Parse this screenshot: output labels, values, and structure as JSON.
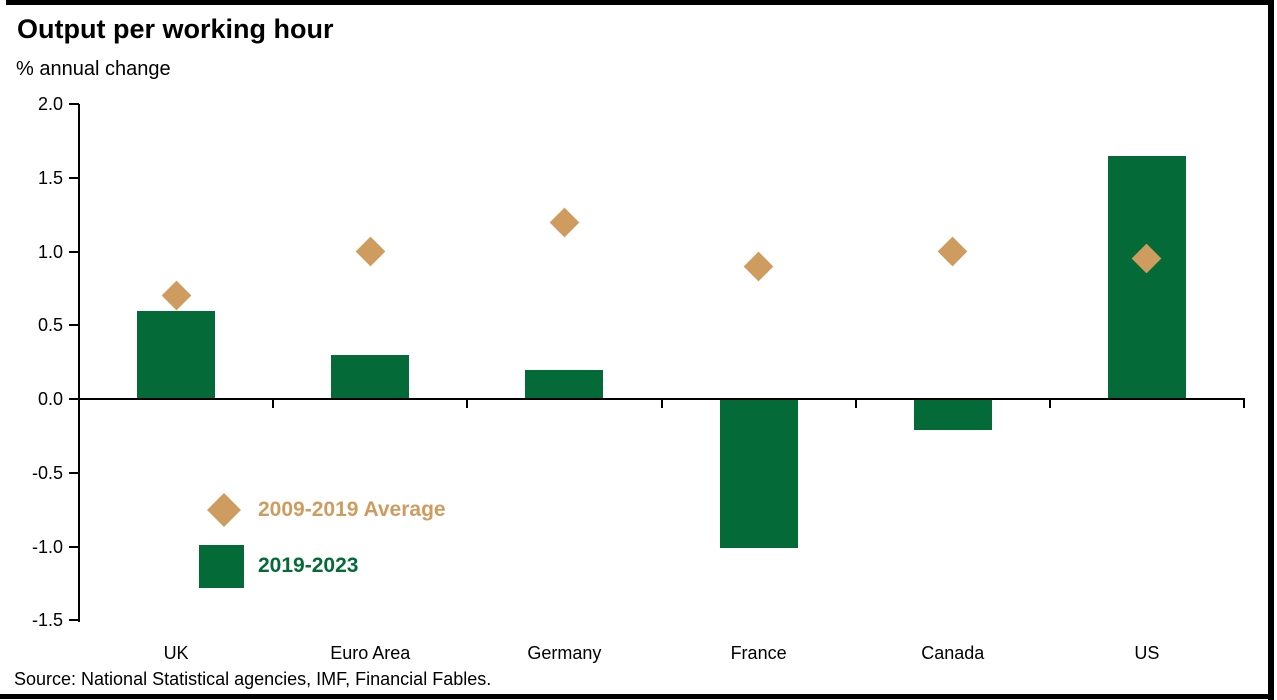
{
  "header": {
    "title": "Output per working hour",
    "subtitle": "% annual change"
  },
  "footer": {
    "source": "Source: National Statistical agencies, IMF, Financial Fables."
  },
  "colors": {
    "bar_green": "#046A38",
    "diamond_tan": "#CF9C5F",
    "axis_black": "#000000"
  },
  "legend": {
    "items": [
      {
        "label": "2009-2019 Average",
        "marker": "diamond",
        "color": "#CF9C5F"
      },
      {
        "label": "2019-2023",
        "marker": "square",
        "color": "#046A38"
      }
    ]
  },
  "chart_data": {
    "type": "bar",
    "title": "Output per working hour",
    "ylabel": "% annual change",
    "categories": [
      "UK",
      "Euro Area",
      "Germany",
      "France",
      "Canada",
      "US"
    ],
    "series": [
      {
        "name": "2019-2023",
        "type": "bar",
        "color": "#046A38",
        "values": [
          0.6,
          0.3,
          0.2,
          -1.0,
          -0.2,
          1.65
        ]
      },
      {
        "name": "2009-2019 Average",
        "type": "scatter",
        "marker": "diamond",
        "color": "#CF9C5F",
        "values": [
          0.7,
          1.0,
          1.2,
          0.9,
          1.0,
          0.95
        ]
      }
    ],
    "ylim": [
      -1.5,
      2.0
    ],
    "y_tick_labels": [
      "2.0",
      "1.5",
      "1.0",
      "0.5",
      "0.0",
      "-0.5",
      "-1.0",
      "-1.5"
    ],
    "grid": false,
    "legend_position": "inside-lower-left"
  }
}
